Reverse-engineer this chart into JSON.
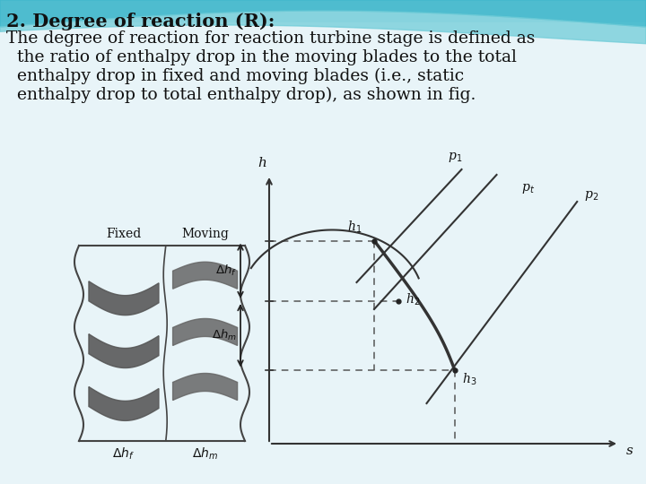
{
  "title": "2. Degree of reaction (R):",
  "body_lines": [
    "The degree of reaction for reaction turbine stage is defined as",
    "  the ratio of enthalpy drop in the moving blades to the total",
    "  enthalpy drop in fixed and moving blades (i.e., static",
    "  enthalpy drop to total enthalpy drop), as shown in fig."
  ],
  "title_fontsize": 15,
  "body_fontsize": 13.5,
  "bg_color": "#cce8f0",
  "top_band_color": "#40b8cc",
  "top_band_color2": "#70ccd8",
  "content_bg": "#e8f4f8",
  "blade_bg": "#f0f0f0",
  "blade_line_color": "#444444",
  "blade_dark_color": "#555555",
  "hs_line_color": "#333333",
  "hs_dash_color": "#555555",
  "text_color": "#111111"
}
